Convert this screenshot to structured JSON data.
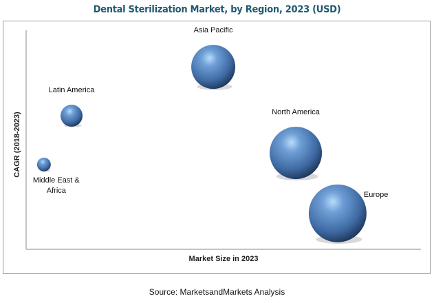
{
  "chart_data": {
    "type": "bubble",
    "title": "Dental Sterilization Market, by Region, 2023 (USD)",
    "xlabel": "Market Size in 2023",
    "ylabel": "CAGR (2018-2023)",
    "xlim": [
      0,
      100
    ],
    "ylim": [
      0,
      100
    ],
    "axes_ticks": "none (relative positioning)",
    "grid": false,
    "series": [
      {
        "name": "Latin America",
        "label_lines": [
          "Latin America"
        ],
        "x": 11.5,
        "y": 61,
        "size": 16,
        "label_pos": "above"
      },
      {
        "name": "Middle East & Africa",
        "label_lines": [
          "Middle East &",
          "Africa"
        ],
        "x": 4.5,
        "y": 38.7,
        "size": 10,
        "label_pos": "below"
      },
      {
        "name": "Asia Pacific",
        "label_lines": [
          "Asia Pacific"
        ],
        "x": 47.4,
        "y": 83.3,
        "size": 32,
        "label_pos": "above"
      },
      {
        "name": "North America",
        "label_lines": [
          "North America"
        ],
        "x": 68.3,
        "y": 44,
        "size": 38,
        "label_pos": "above"
      },
      {
        "name": "Europe",
        "label_lines": [
          "Europe"
        ],
        "x": 78.9,
        "y": 16.4,
        "size": 42,
        "label_pos": "right"
      }
    ],
    "bubble_color": "#3f6fa8"
  },
  "source": "Source: MarketsandMarkets Analysis"
}
